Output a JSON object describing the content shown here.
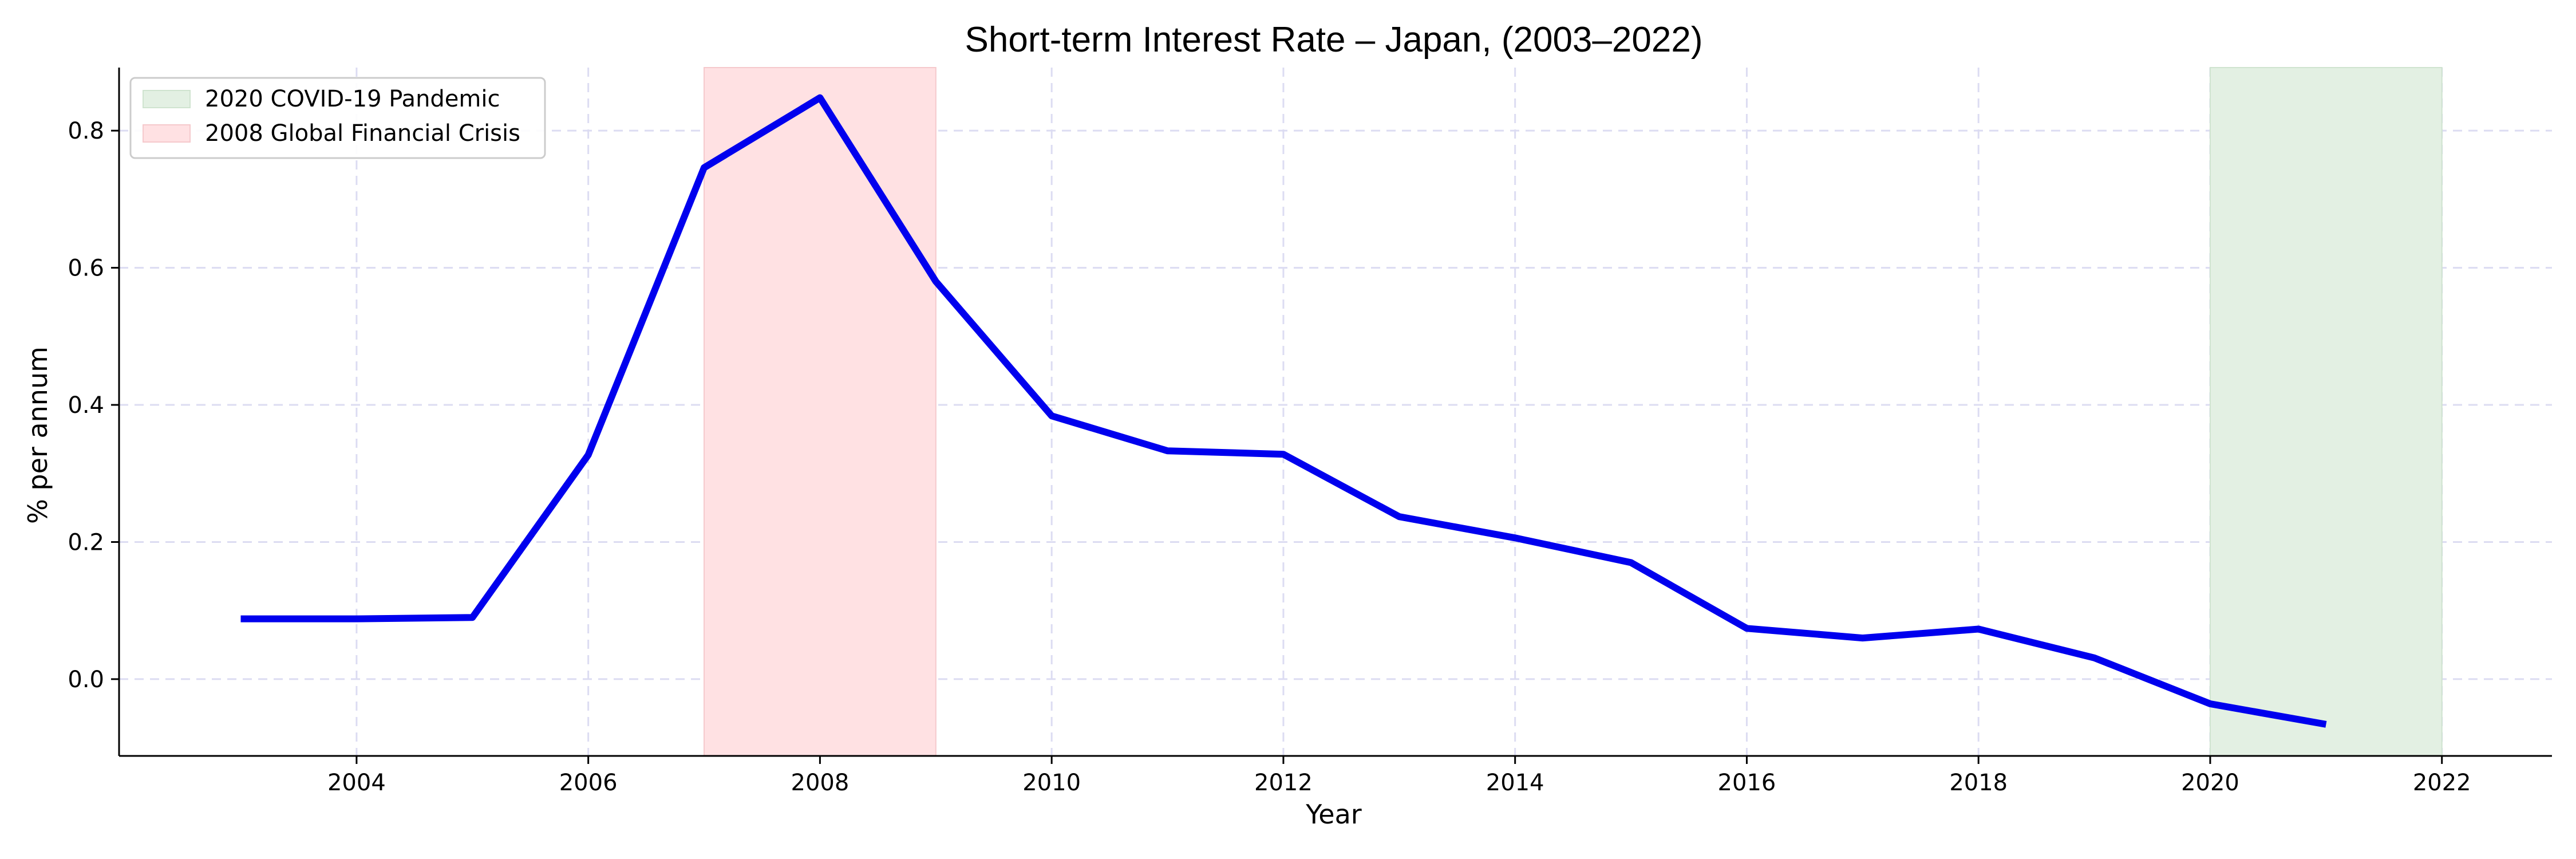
{
  "chart_data": {
    "type": "line",
    "title": "Short-term Interest Rate – Japan, (2003–2022)",
    "xlabel": "Year",
    "ylabel": "% per annum",
    "xlim": [
      2001.95,
      2022.95
    ],
    "ylim": [
      -0.112,
      0.892
    ],
    "x_ticks": [
      2004,
      2006,
      2008,
      2010,
      2012,
      2014,
      2016,
      2018,
      2020,
      2022
    ],
    "y_ticks": [
      0.0,
      0.2,
      0.4,
      0.6,
      0.8
    ],
    "x_tick_labels": [
      "2004",
      "2006",
      "2008",
      "2010",
      "2012",
      "2014",
      "2016",
      "2018",
      "2020",
      "2022"
    ],
    "y_tick_labels": [
      "0.0",
      "0.2",
      "0.4",
      "0.6",
      "0.8"
    ],
    "grid": true,
    "legend_position": "top-left",
    "series": [
      {
        "color": "#0000ee",
        "x": [
          2003,
          2004,
          2005,
          2006,
          2007,
          2008,
          2009,
          2010,
          2011,
          2012,
          2013,
          2014,
          2015,
          2016,
          2017,
          2018,
          2019,
          2020,
          2021
        ],
        "values": [
          0.088,
          0.088,
          0.09,
          0.327,
          0.746,
          0.848,
          0.58,
          0.384,
          0.333,
          0.328,
          0.237,
          0.206,
          0.17,
          0.074,
          0.06,
          0.073,
          0.031,
          -0.036,
          -0.066
        ]
      }
    ],
    "shaded_regions": [
      {
        "label": "2020 COVID-19 Pandemic",
        "x_start": 2020,
        "x_end": 2022,
        "color": "#e3f0e3"
      },
      {
        "label": "2008 Global Financial Crisis",
        "x_start": 2007,
        "x_end": 2009,
        "color": "#ffe1e3"
      }
    ]
  }
}
